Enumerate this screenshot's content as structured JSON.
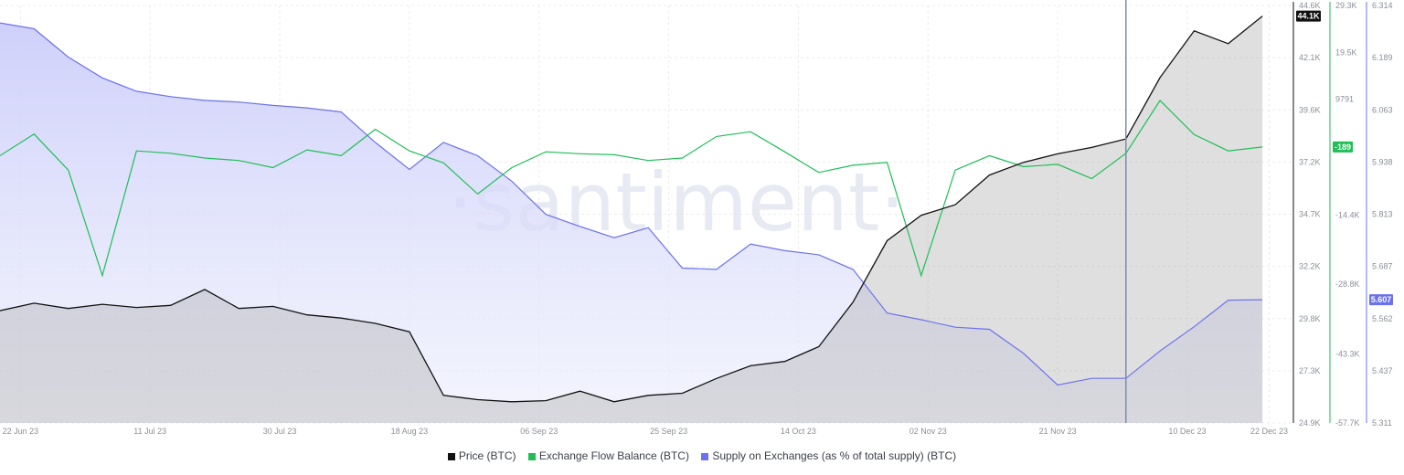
{
  "chart_data": {
    "type": "line",
    "title": "",
    "watermark": "·santiment·",
    "x_dates": [
      "2023-06-19",
      "2023-06-24",
      "2023-06-29",
      "2023-07-04",
      "2023-07-09",
      "2023-07-14",
      "2023-07-19",
      "2023-07-24",
      "2023-07-29",
      "2023-08-03",
      "2023-08-08",
      "2023-08-13",
      "2023-08-18",
      "2023-08-23",
      "2023-08-28",
      "2023-09-02",
      "2023-09-07",
      "2023-09-12",
      "2023-09-17",
      "2023-09-22",
      "2023-09-27",
      "2023-10-02",
      "2023-10-07",
      "2023-10-12",
      "2023-10-17",
      "2023-10-22",
      "2023-10-27",
      "2023-11-01",
      "2023-11-06",
      "2023-11-11",
      "2023-11-16",
      "2023-11-21",
      "2023-11-26",
      "2023-12-01",
      "2023-12-06",
      "2023-12-11",
      "2023-12-16",
      "2023-12-21"
    ],
    "x_ticks": [
      {
        "date": "2023-06-22",
        "label": "22 Jun 23"
      },
      {
        "date": "2023-07-11",
        "label": "11 Jul 23"
      },
      {
        "date": "2023-07-30",
        "label": "30 Jul 23"
      },
      {
        "date": "2023-08-18",
        "label": "18 Aug 23"
      },
      {
        "date": "2023-09-06",
        "label": "06 Sep 23"
      },
      {
        "date": "2023-09-25",
        "label": "25 Sep 23"
      },
      {
        "date": "2023-10-14",
        "label": "14 Oct 23"
      },
      {
        "date": "2023-11-02",
        "label": "02 Nov 23"
      },
      {
        "date": "2023-11-21",
        "label": "21 Nov 23"
      },
      {
        "date": "2023-12-10",
        "label": "10 Dec 23"
      },
      {
        "date": "2023-12-22",
        "label": "22 Dec 23"
      }
    ],
    "x_range": [
      "2023-06-19",
      "2023-12-23"
    ],
    "marker_date": "2023-12-01",
    "series": [
      {
        "name": "Price (BTC)",
        "color": "#111111",
        "axis": "price",
        "values": [
          30200,
          30550,
          30300,
          30500,
          30350,
          30450,
          31200,
          30300,
          30400,
          30000,
          29850,
          29600,
          29200,
          26200,
          26000,
          25900,
          25950,
          26400,
          25900,
          26200,
          26300,
          27000,
          27600,
          27800,
          28500,
          30600,
          33500,
          34700,
          35200,
          36600,
          37200,
          37600,
          37900,
          38300,
          41200,
          43400,
          42800,
          44100
        ]
      },
      {
        "name": "Exchange Flow Balance (BTC)",
        "color": "#1fbe56",
        "axis": "flow",
        "values": [
          -2000,
          2500,
          -5000,
          -27000,
          -1000,
          -1500,
          -2500,
          -3000,
          -4500,
          -800,
          -2000,
          3500,
          -1000,
          -3500,
          -10000,
          -4500,
          -1200,
          -1600,
          -1800,
          -3000,
          -2500,
          2000,
          3000,
          -1200,
          -5500,
          -4000,
          -3400,
          -27000,
          -5000,
          -2000,
          -4300,
          -3800,
          -6800,
          -1500,
          9500,
          2400,
          -1000,
          -189
        ]
      },
      {
        "name": "Supply on Exchanges (as % of total supply) (BTC)",
        "color": "#6c72ec",
        "axis": "supply",
        "values": [
          6.272,
          6.258,
          6.19,
          6.14,
          6.108,
          6.095,
          6.086,
          6.082,
          6.074,
          6.068,
          6.058,
          5.985,
          5.92,
          5.985,
          5.953,
          5.892,
          5.812,
          5.783,
          5.756,
          5.78,
          5.683,
          5.68,
          5.741,
          5.725,
          5.715,
          5.68,
          5.575,
          5.559,
          5.541,
          5.536,
          5.478,
          5.402,
          5.418,
          5.418,
          5.484,
          5.542,
          5.606,
          5.607
        ]
      }
    ],
    "axes": {
      "price": {
        "range": [
          24900,
          44600
        ],
        "ticks": [
          "24.9K",
          "27.3K",
          "29.8K",
          "32.2K",
          "34.7K",
          "37.2K",
          "39.6K",
          "42.1K",
          "44.6K"
        ],
        "current_label": "44.1K",
        "current_value": 44100,
        "color": "#111111"
      },
      "flow": {
        "range": [
          -57700,
          29300
        ],
        "ticks": [
          "-57.7K",
          "-43.3K",
          "-28.8K",
          "-14.4K",
          "9791",
          "19.5K",
          "29.3K"
        ],
        "tick_values": [
          -57700,
          -43300,
          -28800,
          -14400,
          9791,
          19500,
          29300
        ],
        "current_label": "-189",
        "current_value": -189,
        "color": "#1fbe56"
      },
      "supply": {
        "range": [
          5.311,
          6.314
        ],
        "ticks": [
          "5.311",
          "5.437",
          "5.562",
          "5.687",
          "5.813",
          "5.938",
          "6.063",
          "6.189",
          "6.314"
        ],
        "current_label": "5.607",
        "current_value": 5.607,
        "color": "#6c72ec"
      }
    },
    "grid": true,
    "legend_position": "bottom-center"
  }
}
